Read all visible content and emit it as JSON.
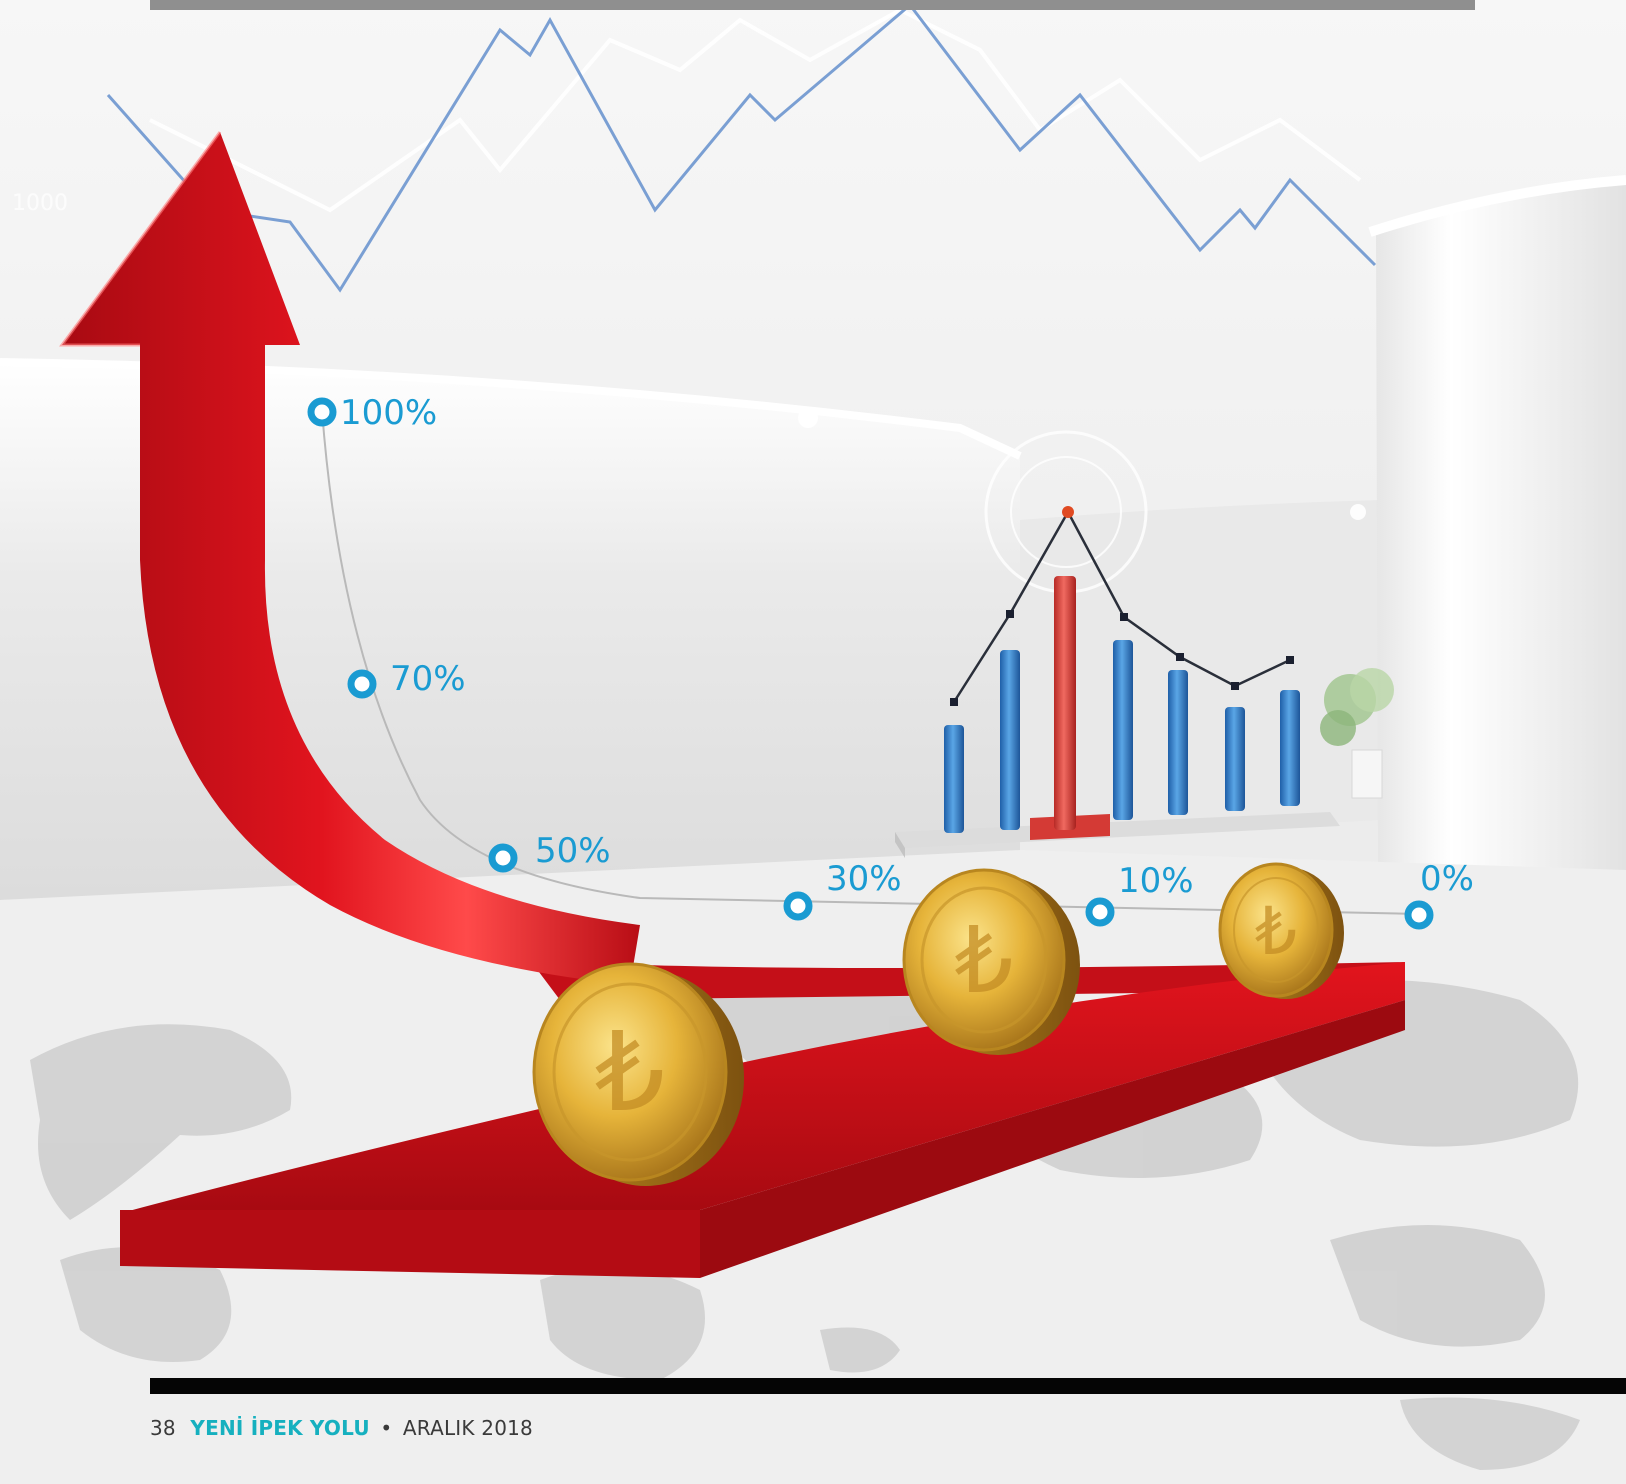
{
  "illustration": {
    "percent_labels": [
      "100%",
      "70%",
      "50%",
      "30%",
      "10%",
      "0%"
    ],
    "background_axis_label": "1000",
    "coin_symbol": "₺",
    "colors": {
      "arrow_red": "#d8121c",
      "marker_blue": "#1a9bd2",
      "bar_blue": "#2d78c4",
      "bar_red": "#d63a35",
      "coin_gold": "#e3b23a",
      "trend_line": "#7a9fd3"
    }
  },
  "footer": {
    "page_number": "38",
    "magazine_name": "YENİ İPEK YOLU",
    "separator": "•",
    "issue": "ARALIK 2018"
  }
}
